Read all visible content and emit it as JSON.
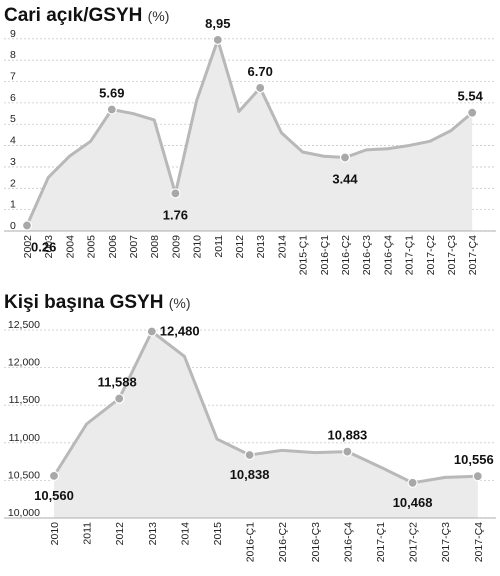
{
  "chart_data": [
    {
      "type": "area",
      "title": "Cari açık/GSYH",
      "unit": "(%)",
      "x": [
        "2002",
        "2003",
        "2004",
        "2005",
        "2006",
        "2007",
        "2008",
        "2009",
        "2010",
        "2011",
        "2012",
        "2013",
        "2014",
        "2015-Ç1",
        "2016-Ç1",
        "2016-Ç2",
        "2016-Ç3",
        "2016-Ç4",
        "2017-Ç1",
        "2017-Ç2",
        "2017-Ç3",
        "2017-Ç4"
      ],
      "tick_labels": [
        "2002",
        "2003",
        "2004",
        "2005",
        "2006",
        "2007",
        "2008",
        "2009",
        "2010",
        "2011",
        "2012",
        "2013",
        "2014",
        "2015-Ç1",
        "2016-Ç1",
        "2016-Ç2",
        "2016-Ç3",
        "2016-Ç4",
        "2017-Ç1",
        "2017-Ç2",
        "2017-Ç3",
        "2017-Ç4"
      ],
      "values": [
        0.26,
        2.5,
        3.5,
        4.2,
        5.69,
        5.5,
        5.2,
        1.76,
        6.1,
        8.95,
        5.6,
        6.7,
        4.6,
        3.7,
        3.5,
        3.44,
        3.8,
        3.85,
        4.0,
        4.2,
        4.7,
        5.54
      ],
      "yticks": [
        "0",
        "1",
        "2",
        "3",
        "4",
        "5",
        "6",
        "7",
        "8",
        "9"
      ],
      "ylim": [
        0,
        9.6
      ],
      "highlights": [
        {
          "index": 0,
          "label": "0.26"
        },
        {
          "index": 4,
          "label": "5.69"
        },
        {
          "index": 7,
          "label": "1.76"
        },
        {
          "index": 9,
          "label": "8,95"
        },
        {
          "index": 11,
          "label": "6.70"
        },
        {
          "index": 15,
          "label": "3.44"
        },
        {
          "index": 21,
          "label": "5.54"
        }
      ],
      "grid": true,
      "line_color": "#b8b8b8",
      "fill_color": "#ebebeb"
    },
    {
      "type": "area",
      "title": "Kişi başına GSYH",
      "unit": "(%)",
      "x": [
        "2010",
        "2011",
        "2012",
        "2013",
        "2014",
        "2015",
        "2016-Ç1",
        "2016-Ç2",
        "2016-Ç3",
        "2016-Ç4",
        "2017-Ç1",
        "2017-Ç2",
        "2017-Ç3",
        "2017-Ç4"
      ],
      "tick_labels": [
        "2010",
        "2011",
        "2012",
        "2013",
        "2014",
        "2015",
        "2016-Ç1",
        "2016-Ç2",
        "2016-Ç3",
        "2016-Ç4",
        "2017-Ç1",
        "2017-Ç2",
        "2017-Ç3",
        "2017-Ç4"
      ],
      "values": [
        10560,
        11250,
        11588,
        12480,
        12150,
        11050,
        10838,
        10900,
        10870,
        10883,
        10680,
        10468,
        10540,
        10556
      ],
      "yticks": [
        "10,000",
        "10,500",
        "11,000",
        "11,500",
        "12,000",
        "12,500"
      ],
      "ylim": [
        10000,
        12500
      ],
      "highlights": [
        {
          "index": 0,
          "label": "10,560"
        },
        {
          "index": 2,
          "label": "11,588"
        },
        {
          "index": 3,
          "label": "12,480"
        },
        {
          "index": 6,
          "label": "10,838"
        },
        {
          "index": 9,
          "label": "10,883"
        },
        {
          "index": 11,
          "label": "10,468"
        },
        {
          "index": 13,
          "label": "10,556"
        }
      ],
      "grid": true,
      "line_color": "#b8b8b8",
      "fill_color": "#ebebeb"
    }
  ]
}
